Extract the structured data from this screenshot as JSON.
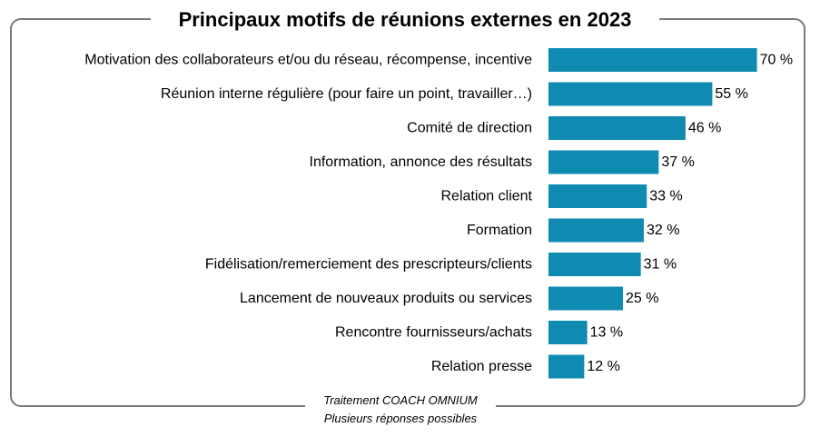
{
  "title": "Principaux motifs de réunions externes en 2023",
  "footer": {
    "line1": "Traitement COACH OMNIUM",
    "line2": "Plusieurs réponses possibles"
  },
  "colors": {
    "bar": "#0f8bb2",
    "text": "#000000",
    "frame": "#7a7a7a"
  },
  "chart_data": {
    "type": "bar",
    "orientation": "horizontal",
    "title": "Principaux motifs de réunions externes en 2023",
    "xlim": [
      0,
      100
    ],
    "grid": false,
    "legend": "none",
    "categories": [
      "Motivation des collaborateurs et/ou du réseau, récompense, incentive",
      "Réunion interne régulière (pour faire un point, travailler…)",
      "Comité de direction",
      "Information, annonce des résultats",
      "Relation client",
      "Formation",
      "Fidélisation/remerciement des prescripteurs/clients",
      "Lancement de nouveaux produits ou services",
      "Rencontre fournisseurs/achats",
      "Relation presse"
    ],
    "values": [
      70,
      55,
      46,
      37,
      33,
      32,
      31,
      25,
      13,
      12
    ],
    "value_labels": [
      "70 %",
      "55 %",
      "46 %",
      "37 %",
      "33 %",
      "32 %",
      "31 %",
      "25 %",
      "13 %",
      "12 %"
    ]
  }
}
